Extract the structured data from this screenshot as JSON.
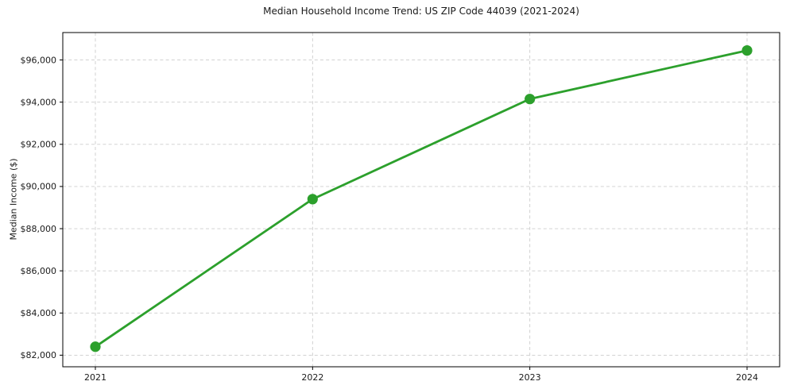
{
  "chart_data": {
    "type": "line",
    "title": "Median Household Income Trend: US ZIP Code 44039 (2021-2024)",
    "xlabel": "",
    "ylabel": "Median Income ($)",
    "x": [
      2021,
      2022,
      2023,
      2024
    ],
    "series": [
      {
        "values": [
          82400,
          89400,
          94150,
          96450
        ],
        "color": "#2ca02c",
        "marker": "circle",
        "line_width": 2.8,
        "marker_radius": 6.6
      }
    ],
    "xticks": [
      {
        "value": 2021,
        "label": "2021"
      },
      {
        "value": 2022,
        "label": "2022"
      },
      {
        "value": 2023,
        "label": "2023"
      },
      {
        "value": 2024,
        "label": "2024"
      }
    ],
    "yticks": [
      {
        "value": 82000,
        "label": "$82,000"
      },
      {
        "value": 84000,
        "label": "$84,000"
      },
      {
        "value": 86000,
        "label": "$86,000"
      },
      {
        "value": 88000,
        "label": "$88,000"
      },
      {
        "value": 90000,
        "label": "$90,000"
      },
      {
        "value": 92000,
        "label": "$92,000"
      },
      {
        "value": 94000,
        "label": "$94,000"
      },
      {
        "value": 96000,
        "label": "$96,000"
      }
    ],
    "xlim": [
      2020.85,
      2024.15
    ],
    "ylim": [
      81450,
      97300
    ],
    "grid": {
      "visible": true,
      "line_style": "dashed",
      "color": "#cccccc"
    },
    "legend": {
      "visible": false
    },
    "axes": {
      "spine_color": "#000000",
      "tick_color": "#000000",
      "text_color": "#1a1a1a"
    },
    "background": "#ffffff"
  }
}
